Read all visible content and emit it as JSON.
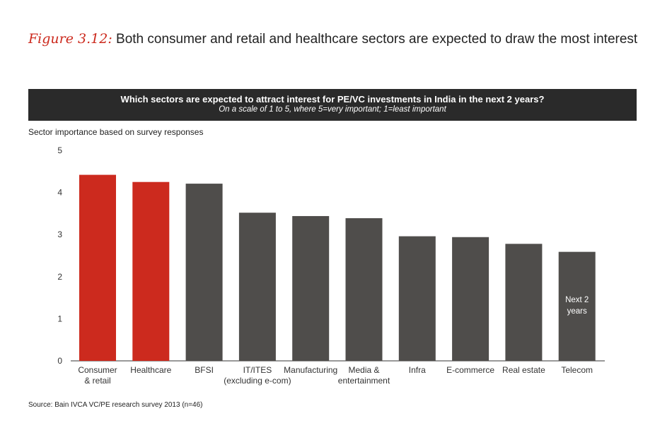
{
  "title": {
    "label": "Figure 3.12:",
    "text": "Both consumer and retail and healthcare sectors are expected to draw the most interest"
  },
  "banner": {
    "question": "Which sectors are expected to attract interest for PE/VC  investments in India in the next 2 years?",
    "subtitle": "On a scale of 1 to 5, where 5=very important; 1=least important"
  },
  "source": "Source: Bain IVCA VC/PE research survey 2013 (n=46)",
  "colors": {
    "highlight": "#cc2a1e",
    "default": "#4f4d4b",
    "banner": "#2a2a2a"
  },
  "chart_data": {
    "type": "bar",
    "ylabel": "Sector importance based on survey responses",
    "ylim": [
      0,
      5
    ],
    "yticks": [
      0,
      1,
      2,
      3,
      4,
      5
    ],
    "grid": false,
    "categories": [
      [
        "Consumer",
        "& retail"
      ],
      [
        "Healthcare"
      ],
      [
        "BFSI"
      ],
      [
        "IT/ITES",
        "(excluding e-com)"
      ],
      [
        "Manufacturing"
      ],
      [
        "Media &",
        "entertainment"
      ],
      [
        "Infra"
      ],
      [
        "E-commerce"
      ],
      [
        "Real estate"
      ],
      [
        "Telecom"
      ]
    ],
    "values": [
      4.42,
      4.25,
      4.21,
      3.52,
      3.44,
      3.39,
      2.96,
      2.94,
      2.78,
      2.59
    ],
    "highlighted": [
      0,
      1
    ],
    "annotation": {
      "bar_index": 9,
      "lines": [
        "Next 2",
        "years"
      ]
    }
  }
}
